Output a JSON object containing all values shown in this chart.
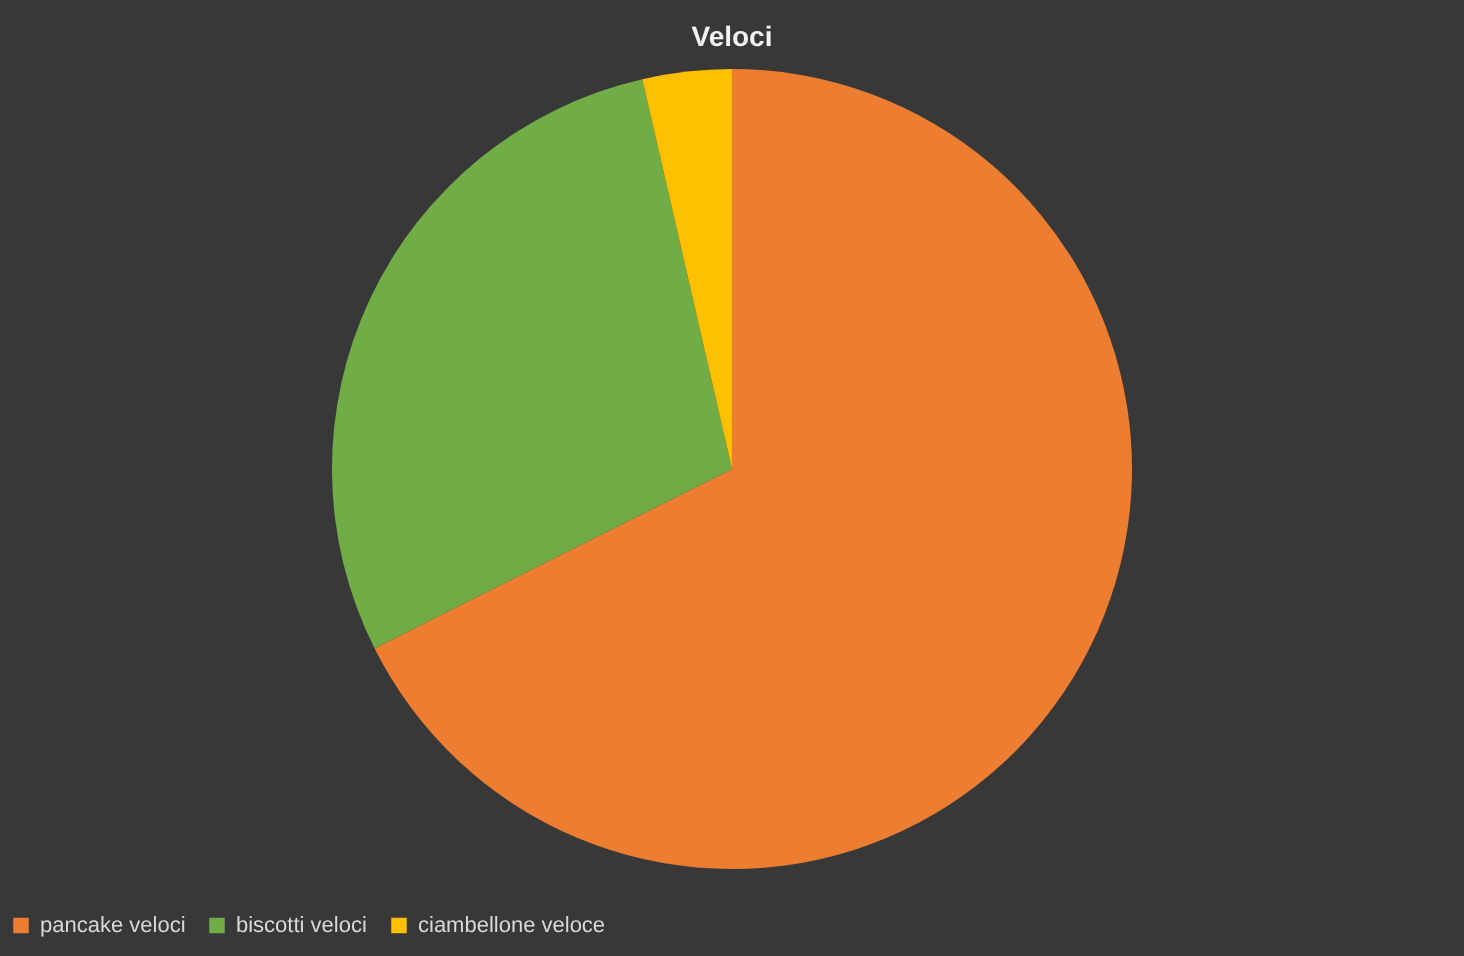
{
  "chart_data": {
    "type": "pie",
    "title": "Veloci",
    "categories": [
      "pancake veloci",
      "biscotti veloci",
      "ciambellone veloce"
    ],
    "values": [
      67.6,
      28.8,
      3.6
    ],
    "colors": [
      "#ed7d31",
      "#70ad47",
      "#ffc000"
    ],
    "legend": "bottom"
  }
}
